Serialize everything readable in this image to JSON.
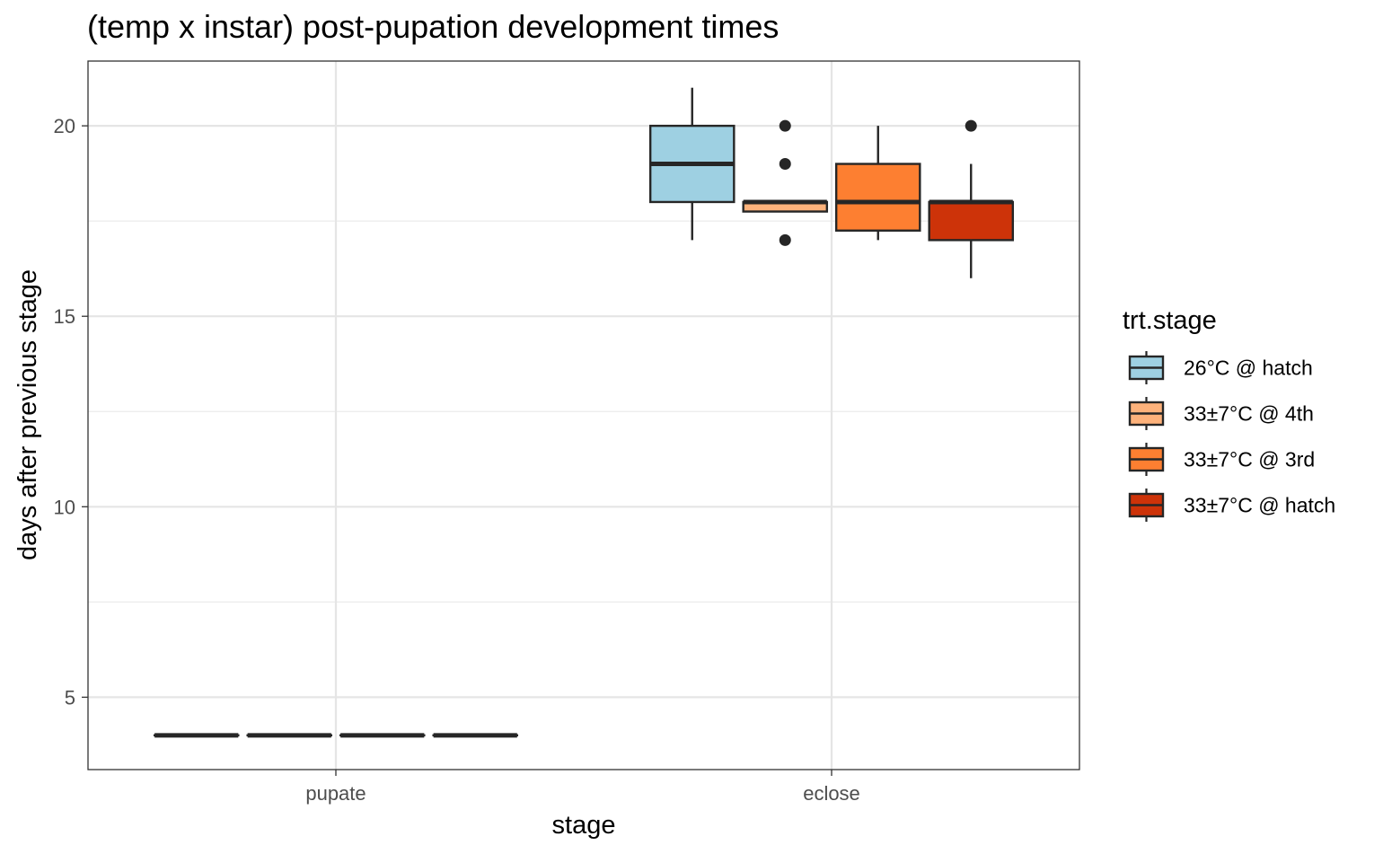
{
  "chart_data": {
    "type": "box",
    "title": "(temp x instar) post-pupation development times",
    "xlabel": "stage",
    "ylabel": "days after previous stage",
    "categories": [
      "pupate",
      "eclose"
    ],
    "ylim": [
      3.1,
      21.7
    ],
    "yticks": [
      5,
      10,
      15,
      20
    ],
    "grid": true,
    "legend": {
      "title": "trt.stage",
      "position": "right"
    },
    "series": [
      {
        "name": "26°C @ hatch",
        "color": "#9ed0e2",
        "boxes": [
          {
            "category": "pupate",
            "min": 4,
            "q1": 4,
            "median": 4,
            "q3": 4,
            "max": 4,
            "outliers": []
          },
          {
            "category": "eclose",
            "min": 17,
            "q1": 18,
            "median": 19,
            "q3": 20,
            "max": 21,
            "outliers": []
          }
        ]
      },
      {
        "name": "33±7°C @ 4th",
        "color": "#fdb27b",
        "boxes": [
          {
            "category": "pupate",
            "min": 4,
            "q1": 4,
            "median": 4,
            "q3": 4,
            "max": 4,
            "outliers": []
          },
          {
            "category": "eclose",
            "min": 17.75,
            "q1": 17.75,
            "median": 18,
            "q3": 18,
            "max": 18,
            "outliers": [
              17,
              19,
              20
            ]
          }
        ]
      },
      {
        "name": "33±7°C @ 3rd",
        "color": "#fd7f31",
        "boxes": [
          {
            "category": "pupate",
            "min": 4,
            "q1": 4,
            "median": 4,
            "q3": 4,
            "max": 4,
            "outliers": []
          },
          {
            "category": "eclose",
            "min": 17,
            "q1": 17.25,
            "median": 18,
            "q3": 19,
            "max": 20,
            "outliers": []
          }
        ]
      },
      {
        "name": "33±7°C @ hatch",
        "color": "#cd3309",
        "boxes": [
          {
            "category": "pupate",
            "min": 4,
            "q1": 4,
            "median": 4,
            "q3": 4,
            "max": 4,
            "outliers": []
          },
          {
            "category": "eclose",
            "min": 16,
            "q1": 17,
            "median": 18,
            "q3": 18,
            "max": 19,
            "outliers": [
              20
            ]
          }
        ]
      }
    ]
  }
}
